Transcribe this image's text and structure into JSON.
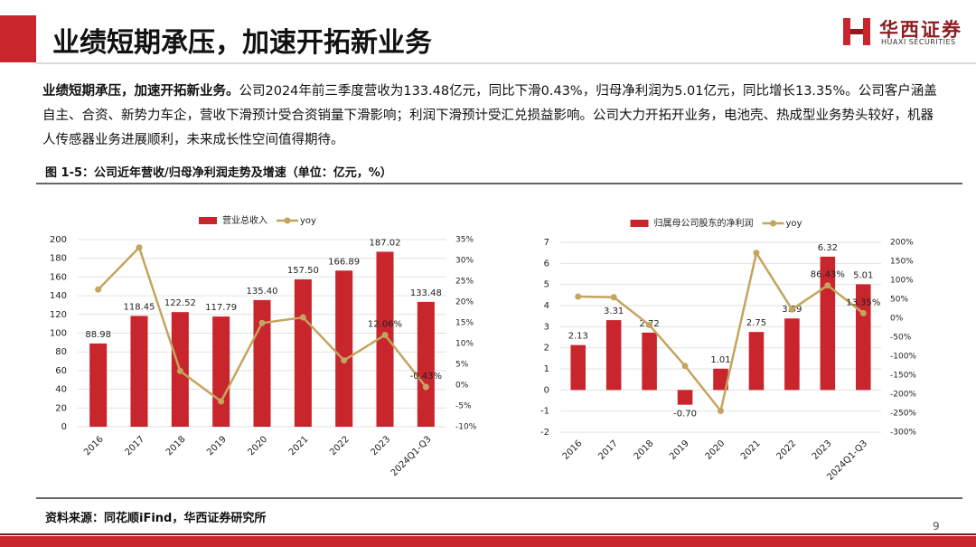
{
  "header": {
    "title": "业绩短期承压，加速开拓新业务",
    "logo_name": "华西证券",
    "logo_subtitle": "HUAXI SECURITIES"
  },
  "paragraph": {
    "lead": "业绩短期承压，加速开拓新业务。",
    "body": "公司2024年前三季度营收为133.48亿元，同比下滑0.43%，归母净利润为5.01亿元，同比增长13.35%。公司客户涵盖自主、合资、新势力车企，营收下滑预计受合资销量下滑影响；利润下滑预计受汇兑损益影响。公司大力开拓开业务，电池壳、热成型业务势头较好，机器人传感器业务进展顺利，未来成长性空间值得期待。"
  },
  "figure_caption": "图 1-5：公司近年营收/归母净利润走势及增速（单位：亿元，%）",
  "chart_data": [
    {
      "type": "bar",
      "grid": true,
      "legend": "top",
      "categories": [
        "2016",
        "2017",
        "2018",
        "2019",
        "2020",
        "2021",
        "2022",
        "2023",
        "2024Q1-Q3"
      ],
      "ylim": [
        0,
        200
      ],
      "yticks": [
        0,
        20,
        40,
        60,
        80,
        100,
        120,
        140,
        160,
        180,
        200
      ],
      "y2lim": [
        -10,
        35
      ],
      "y2ticks": [
        {
          "value": -10,
          "label": "-10%"
        },
        {
          "value": -5,
          "label": "-5%"
        },
        {
          "value": 0,
          "label": "0%"
        },
        {
          "value": 5,
          "label": "5%"
        },
        {
          "value": 10,
          "label": "10%"
        },
        {
          "value": 15,
          "label": "15%"
        },
        {
          "value": 20,
          "label": "20%"
        },
        {
          "value": 25,
          "label": "25%"
        },
        {
          "value": 30,
          "label": "30%"
        },
        {
          "value": 35,
          "label": "35%"
        }
      ],
      "series": [
        {
          "name": "营业总收入",
          "type": "bar",
          "color": "#c9252c",
          "values": [
            88.98,
            118.45,
            122.52,
            117.79,
            135.4,
            157.5,
            166.89,
            187.02,
            133.48
          ],
          "value_labels": [
            "88.98",
            "118.45",
            "122.52",
            "117.79",
            "135.40",
            "157.50",
            "166.89",
            "187.02",
            "133.48"
          ]
        },
        {
          "name": "yoy",
          "type": "line",
          "axis": "y2",
          "color": "#c4a45e",
          "values": [
            23,
            33.1,
            3.4,
            -3.9,
            14.95,
            16.3,
            5.96,
            12.06,
            -0.43
          ],
          "value_labels": [
            null,
            null,
            null,
            null,
            null,
            null,
            null,
            "12.06%",
            "-0.43%"
          ]
        }
      ]
    },
    {
      "type": "bar",
      "grid": true,
      "legend": "top",
      "categories": [
        "2016",
        "2017",
        "2018",
        "2019",
        "2020",
        "2021",
        "2022",
        "2023",
        "2024Q1-Q3"
      ],
      "ylim": [
        -2,
        7
      ],
      "yticks": [
        -2,
        -1,
        0,
        1,
        2,
        3,
        4,
        5,
        6,
        7
      ],
      "y2lim": [
        -300,
        200
      ],
      "y2ticks": [
        {
          "value": -300,
          "label": "-300%"
        },
        {
          "value": -250,
          "label": "-250%"
        },
        {
          "value": -200,
          "label": "-200%"
        },
        {
          "value": -150,
          "label": "-150%"
        },
        {
          "value": -100,
          "label": "-100%"
        },
        {
          "value": -50,
          "label": "-50%"
        },
        {
          "value": 0,
          "label": "0%"
        },
        {
          "value": 50,
          "label": "50%"
        },
        {
          "value": 100,
          "label": "100%"
        },
        {
          "value": 150,
          "label": "150%"
        },
        {
          "value": 200,
          "label": "200%"
        }
      ],
      "series": [
        {
          "name": "归属母公司股东的净利润",
          "type": "bar",
          "color": "#c9252c",
          "values": [
            2.13,
            3.31,
            2.72,
            -0.7,
            1.01,
            2.75,
            3.39,
            6.32,
            5.01
          ],
          "value_labels": [
            "2.13",
            "3.31",
            "2.72",
            "-0.70",
            "1.01",
            "2.75",
            "3.39",
            "6.32",
            "5.01"
          ]
        },
        {
          "name": "yoy",
          "type": "line",
          "axis": "y2",
          "color": "#c4a45e",
          "values": [
            57,
            55.4,
            -17.8,
            -125.7,
            -244,
            172,
            23.3,
            86.43,
            13.35
          ],
          "value_labels": [
            null,
            null,
            null,
            null,
            null,
            null,
            null,
            "86.43%",
            "13.35%"
          ]
        }
      ]
    }
  ],
  "source": "资料来源：同花顺iFind，华西证券研究所",
  "page_number": "9"
}
